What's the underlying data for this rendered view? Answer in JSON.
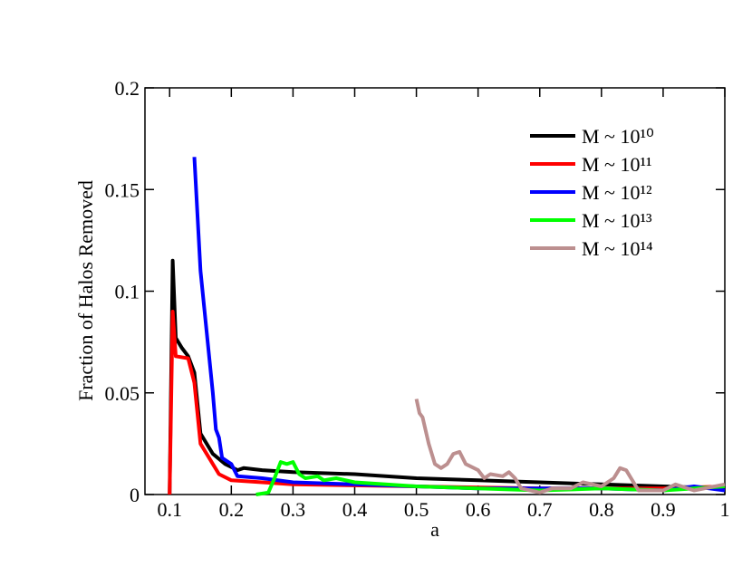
{
  "chart_data": {
    "type": "line",
    "x_label": "a",
    "y_label": "Fraction of Halos Removed",
    "xlim": [
      0.06,
      1
    ],
    "xticks": [
      0.1,
      0.2,
      0.3,
      0.4,
      0.5,
      0.6,
      0.7,
      0.8,
      0.9,
      1
    ],
    "ylim": [
      0,
      0.2
    ],
    "yticks": [
      0,
      0.05,
      0.1,
      0.15,
      0.2
    ],
    "legend": "upper-right",
    "series": [
      {
        "name": "M ~ 10¹⁰",
        "color": "#000000",
        "x": [
          0.1,
          0.105,
          0.11,
          0.12,
          0.13,
          0.14,
          0.15,
          0.17,
          0.19,
          0.21,
          0.22,
          0.25,
          0.3,
          0.4,
          0.5,
          0.6,
          0.7,
          0.8,
          0.9,
          1
        ],
        "values": [
          0,
          0.115,
          0.077,
          0.072,
          0.068,
          0.06,
          0.03,
          0.02,
          0.015,
          0.012,
          0.013,
          0.012,
          0.011,
          0.01,
          0.008,
          0.007,
          0.006,
          0.005,
          0.004,
          0.003
        ]
      },
      {
        "name": "M ~ 10¹¹",
        "color": "#ff0000",
        "x": [
          0.1,
          0.105,
          0.11,
          0.13,
          0.14,
          0.15,
          0.17,
          0.18,
          0.2,
          0.25,
          0.3,
          0.5,
          0.7,
          0.9,
          1
        ],
        "values": [
          0,
          0.09,
          0.068,
          0.067,
          0.055,
          0.025,
          0.015,
          0.01,
          0.007,
          0.006,
          0.005,
          0.004,
          0.003,
          0.003,
          0.004
        ]
      },
      {
        "name": "M ~ 10¹²",
        "color": "#0000ff",
        "x": [
          0.14,
          0.15,
          0.16,
          0.17,
          0.175,
          0.18,
          0.185,
          0.2,
          0.21,
          0.25,
          0.3,
          0.4,
          0.5,
          0.6,
          0.8,
          0.9,
          0.95,
          1
        ],
        "values": [
          0.166,
          0.11,
          0.08,
          0.05,
          0.032,
          0.028,
          0.018,
          0.015,
          0.009,
          0.008,
          0.006,
          0.005,
          0.004,
          0.003,
          0.003,
          0.002,
          0.004,
          0.002
        ]
      },
      {
        "name": "M ~ 10¹³",
        "color": "#00ff00",
        "x": [
          0.24,
          0.26,
          0.27,
          0.28,
          0.29,
          0.3,
          0.31,
          0.32,
          0.34,
          0.35,
          0.37,
          0.4,
          0.45,
          0.5,
          0.6,
          0.7,
          0.8,
          0.9,
          1
        ],
        "values": [
          0,
          0.001,
          0.008,
          0.016,
          0.015,
          0.016,
          0.01,
          0.008,
          0.009,
          0.007,
          0.008,
          0.006,
          0.005,
          0.004,
          0.003,
          0.002,
          0.003,
          0.002,
          0.004
        ]
      },
      {
        "name": "M ~ 10¹⁴",
        "color": "#bc8f8f",
        "x": [
          0.5,
          0.505,
          0.51,
          0.52,
          0.53,
          0.54,
          0.55,
          0.56,
          0.57,
          0.58,
          0.6,
          0.61,
          0.62,
          0.64,
          0.65,
          0.66,
          0.67,
          0.7,
          0.72,
          0.75,
          0.77,
          0.8,
          0.82,
          0.83,
          0.84,
          0.86,
          0.9,
          0.92,
          0.95,
          1
        ],
        "values": [
          0.047,
          0.04,
          0.038,
          0.025,
          0.015,
          0.013,
          0.015,
          0.02,
          0.021,
          0.015,
          0.012,
          0.008,
          0.01,
          0.009,
          0.011,
          0.008,
          0.003,
          0.001,
          0.003,
          0.003,
          0.006,
          0.004,
          0.008,
          0.013,
          0.012,
          0.002,
          0.002,
          0.005,
          0.002,
          0.005
        ]
      }
    ]
  }
}
